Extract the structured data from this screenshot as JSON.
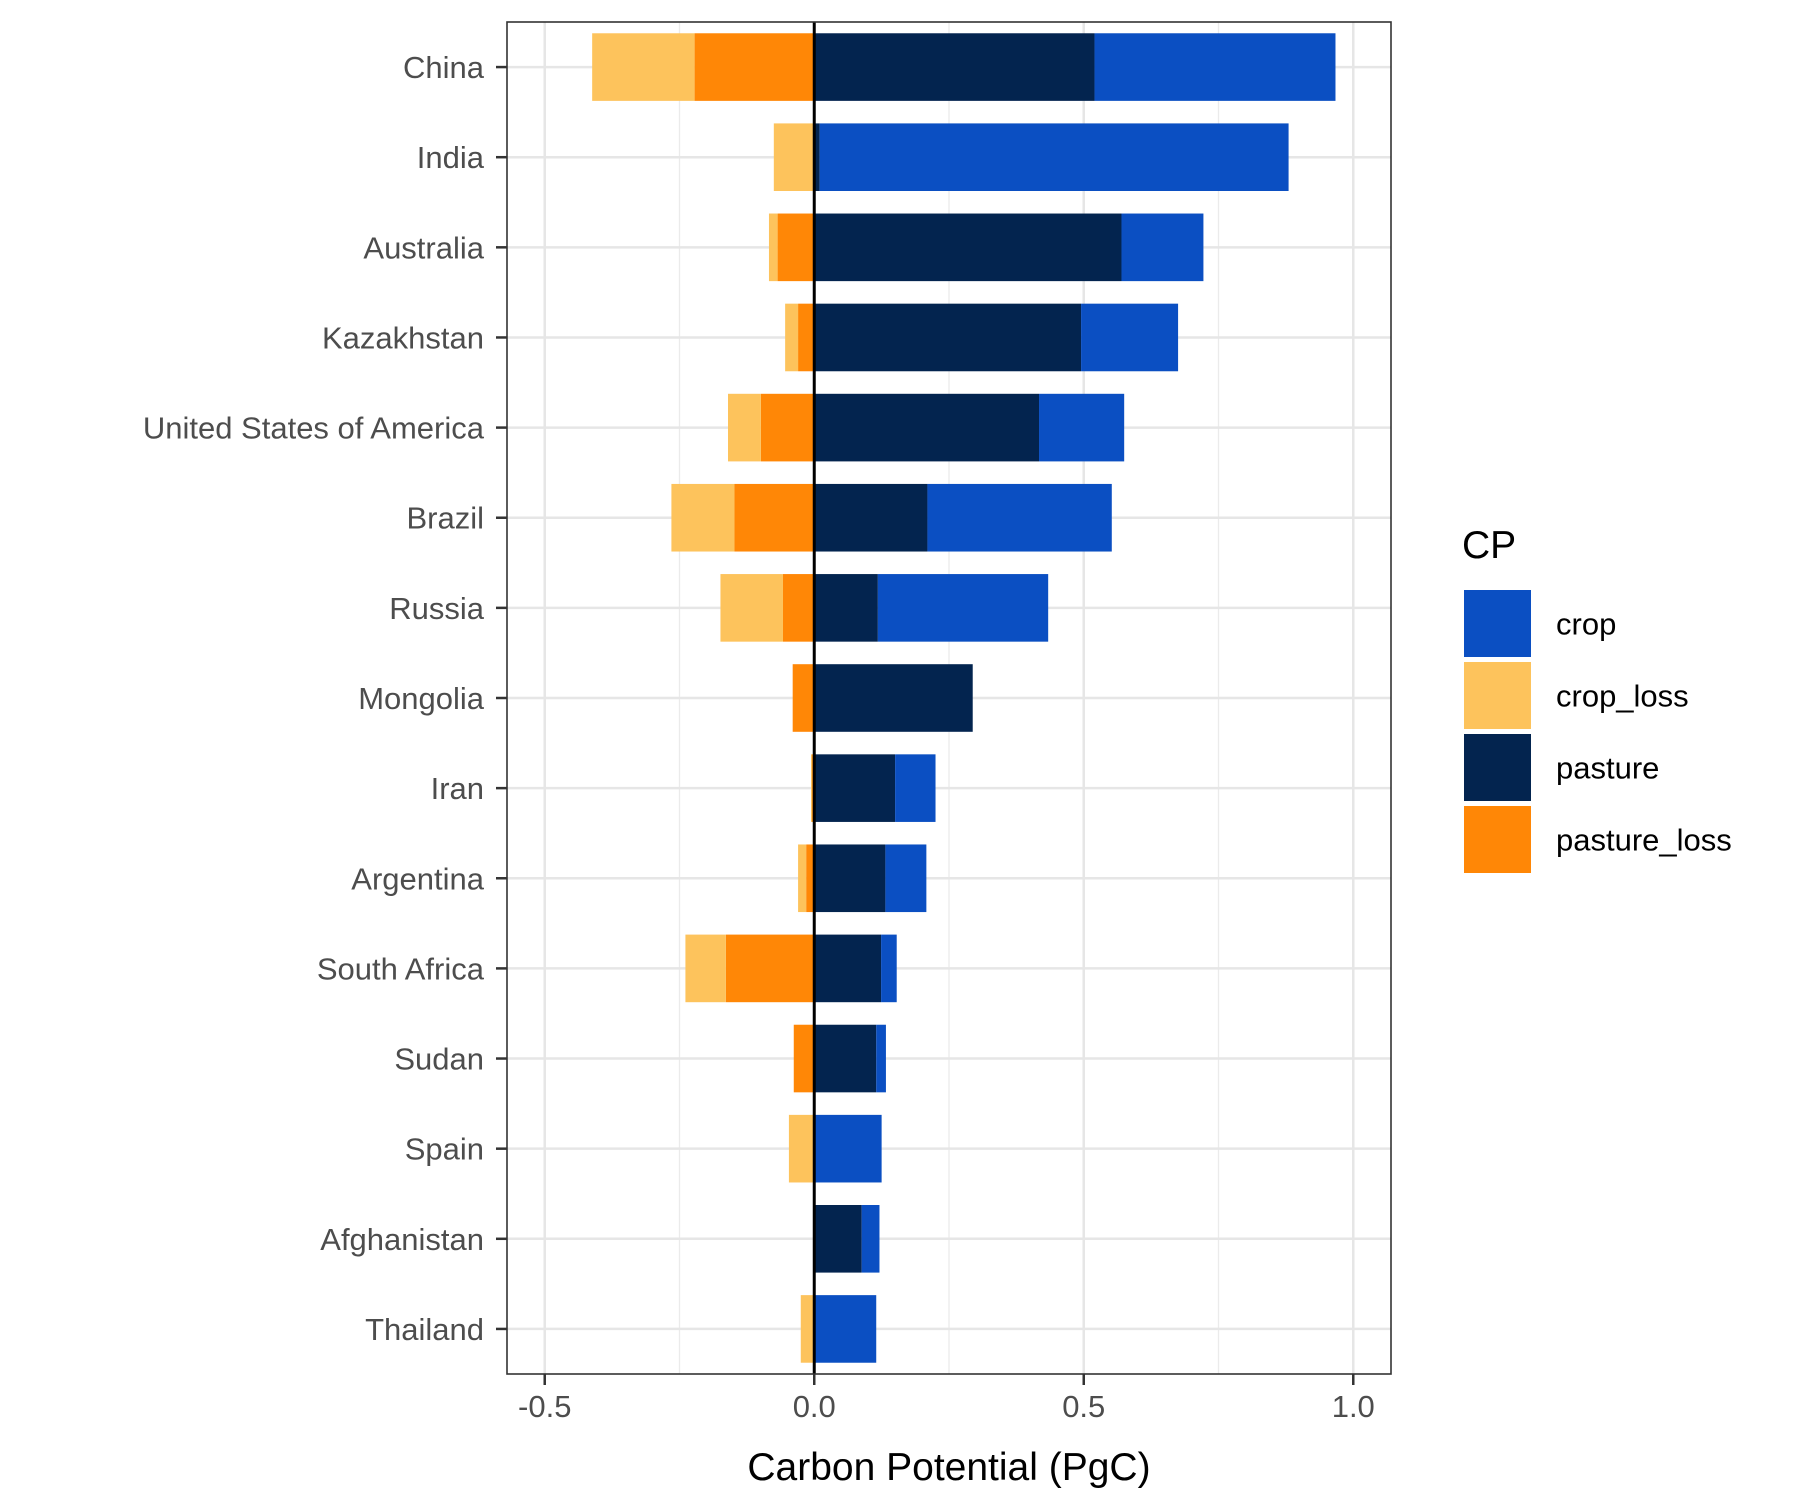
{
  "chart_data": {
    "type": "bar",
    "orientation": "horizontal",
    "stacked": "diverging",
    "categories": [
      "China",
      "India",
      "Australia",
      "Kazakhstan",
      "United States of America",
      "Brazil",
      "Russia",
      "Mongolia",
      "Iran",
      "Argentina",
      "South Africa",
      "Sudan",
      "Spain",
      "Afghanistan",
      "Thailand"
    ],
    "series": [
      {
        "name": "pasture",
        "color": "#03244f",
        "side": "positive",
        "values": [
          0.52,
          0.01,
          0.57,
          0.495,
          0.417,
          0.21,
          0.118,
          0.294,
          0.15,
          0.132,
          0.124,
          0.115,
          0.0,
          0.088,
          0.0
        ]
      },
      {
        "name": "crop",
        "color": "#0b4fc2",
        "side": "positive",
        "values": [
          0.447,
          0.87,
          0.152,
          0.18,
          0.158,
          0.342,
          0.316,
          0.0,
          0.075,
          0.076,
          0.029,
          0.018,
          0.125,
          0.033,
          0.115
        ]
      },
      {
        "name": "pasture_loss",
        "color": "#ff8706",
        "side": "negative",
        "values": [
          -0.222,
          0.0,
          -0.068,
          -0.03,
          -0.099,
          -0.148,
          -0.058,
          -0.04,
          -0.004,
          -0.015,
          -0.164,
          -0.038,
          0.0,
          0.0,
          0.0
        ]
      },
      {
        "name": "crop_loss",
        "color": "#fdc35c",
        "side": "negative",
        "values": [
          -0.19,
          -0.075,
          -0.016,
          -0.024,
          -0.061,
          -0.117,
          -0.116,
          0.0,
          -0.002,
          -0.015,
          -0.075,
          0.0,
          -0.047,
          0.0,
          -0.025
        ]
      }
    ],
    "xlabel": "Carbon Potential (PgC)",
    "ylabel": "",
    "xlim": [
      -0.57,
      1.07
    ],
    "xticks": [
      -0.5,
      0.0,
      0.5,
      1.0
    ],
    "xtick_labels": [
      "-0.5",
      "0.0",
      "0.5",
      "1.0"
    ],
    "grid": true,
    "zero_line": true,
    "legend": {
      "title": "CP",
      "position": "right",
      "entries": [
        {
          "label": "crop",
          "color": "#0b4fc2"
        },
        {
          "label": "crop_loss",
          "color": "#fdc35c"
        },
        {
          "label": "pasture",
          "color": "#03244f"
        },
        {
          "label": "pasture_loss",
          "color": "#ff8706"
        }
      ]
    }
  }
}
